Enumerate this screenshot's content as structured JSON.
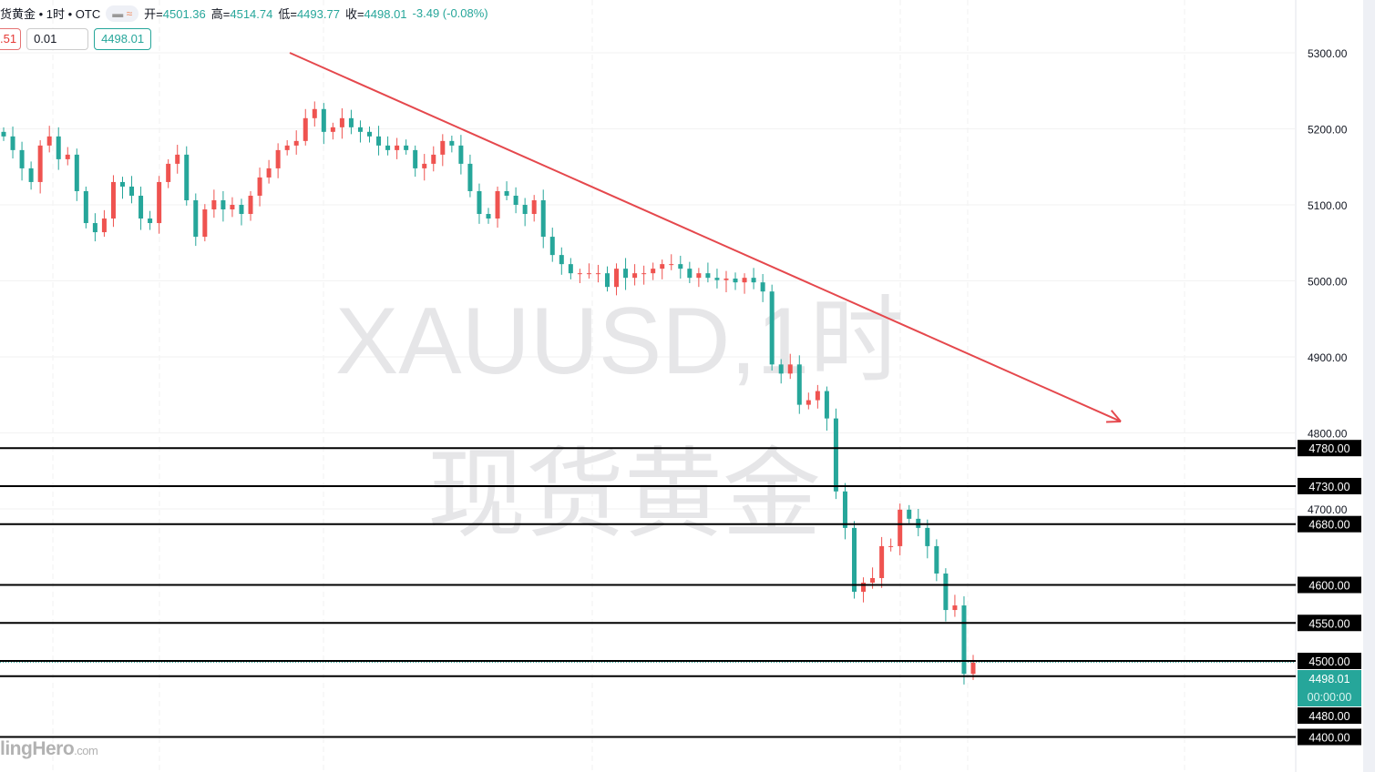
{
  "header": {
    "symbol": "货黄金 • 1时 • OTC",
    "open_label": "开=",
    "open": "4501.36",
    "high_label": "高=",
    "high": "4514.74",
    "low_label": "低=",
    "low": "4493.77",
    "close_label": "收=",
    "close": "4498.01",
    "change": "-3.49 (-0.08%)"
  },
  "trade": {
    "sell_price": ".51",
    "quantity": "0.01",
    "buy_price": "4498.01"
  },
  "watermark": {
    "line1": "XAUUSD,1时",
    "line2": "现货黄金"
  },
  "logo": {
    "text": "lingHero",
    "suffix": ".com"
  },
  "colors": {
    "up": "#ef5350",
    "down": "#26a69a",
    "trendline": "#e5484d",
    "level": "#000000",
    "current": "#26a69a"
  },
  "chart_data": {
    "type": "candlestick",
    "ylim": [
      4380,
      5350
    ],
    "yticks": [
      "5300.00",
      "5200.00",
      "5100.00",
      "5000.00",
      "4900.00",
      "4800.00",
      "4700.00"
    ],
    "closes": [
      5190,
      5172,
      5148,
      5130,
      5178,
      5190,
      5160,
      5166,
      5118,
      5076,
      5064,
      5082,
      5130,
      5124,
      5112,
      5082,
      5076,
      5130,
      5154,
      5166,
      5106,
      5058,
      5094,
      5106,
      5094,
      5100,
      5088,
      5112,
      5136,
      5148,
      5172,
      5178,
      5184,
      5214,
      5226,
      5196,
      5202,
      5214,
      5202,
      5196,
      5190,
      5178,
      5172,
      5178,
      5172,
      5148,
      5154,
      5166,
      5184,
      5178,
      5154,
      5118,
      5088,
      5082,
      5118,
      5112,
      5100,
      5088,
      5106,
      5058,
      5034,
      5022,
      5010,
      5010,
      5010,
      5010,
      4992,
      5016,
      5004,
      5010,
      5010,
      5016,
      5022,
      5022,
      5016,
      5004,
      5010,
      5004,
      5001,
      5003,
      4998,
      5004,
      4998,
      4986,
      4890,
      4878,
      4890,
      4837,
      4843,
      4855,
      4819,
      4723,
      4675,
      4591,
      4603,
      4609,
      4651,
      4651,
      4699,
      4687,
      4675,
      4651,
      4615,
      4567,
      4573,
      4483,
      4498
    ],
    "horizontal_levels": [
      "4780.00",
      "4730.00",
      "4680.00",
      "4600.00",
      "4550.00",
      "4500.00",
      "4480.00",
      "4400.00"
    ],
    "current_price": "4498.01",
    "countdown": "00:00:00",
    "trendline": {
      "start_price": 5300,
      "end_price": 4815,
      "arrow": true
    }
  }
}
